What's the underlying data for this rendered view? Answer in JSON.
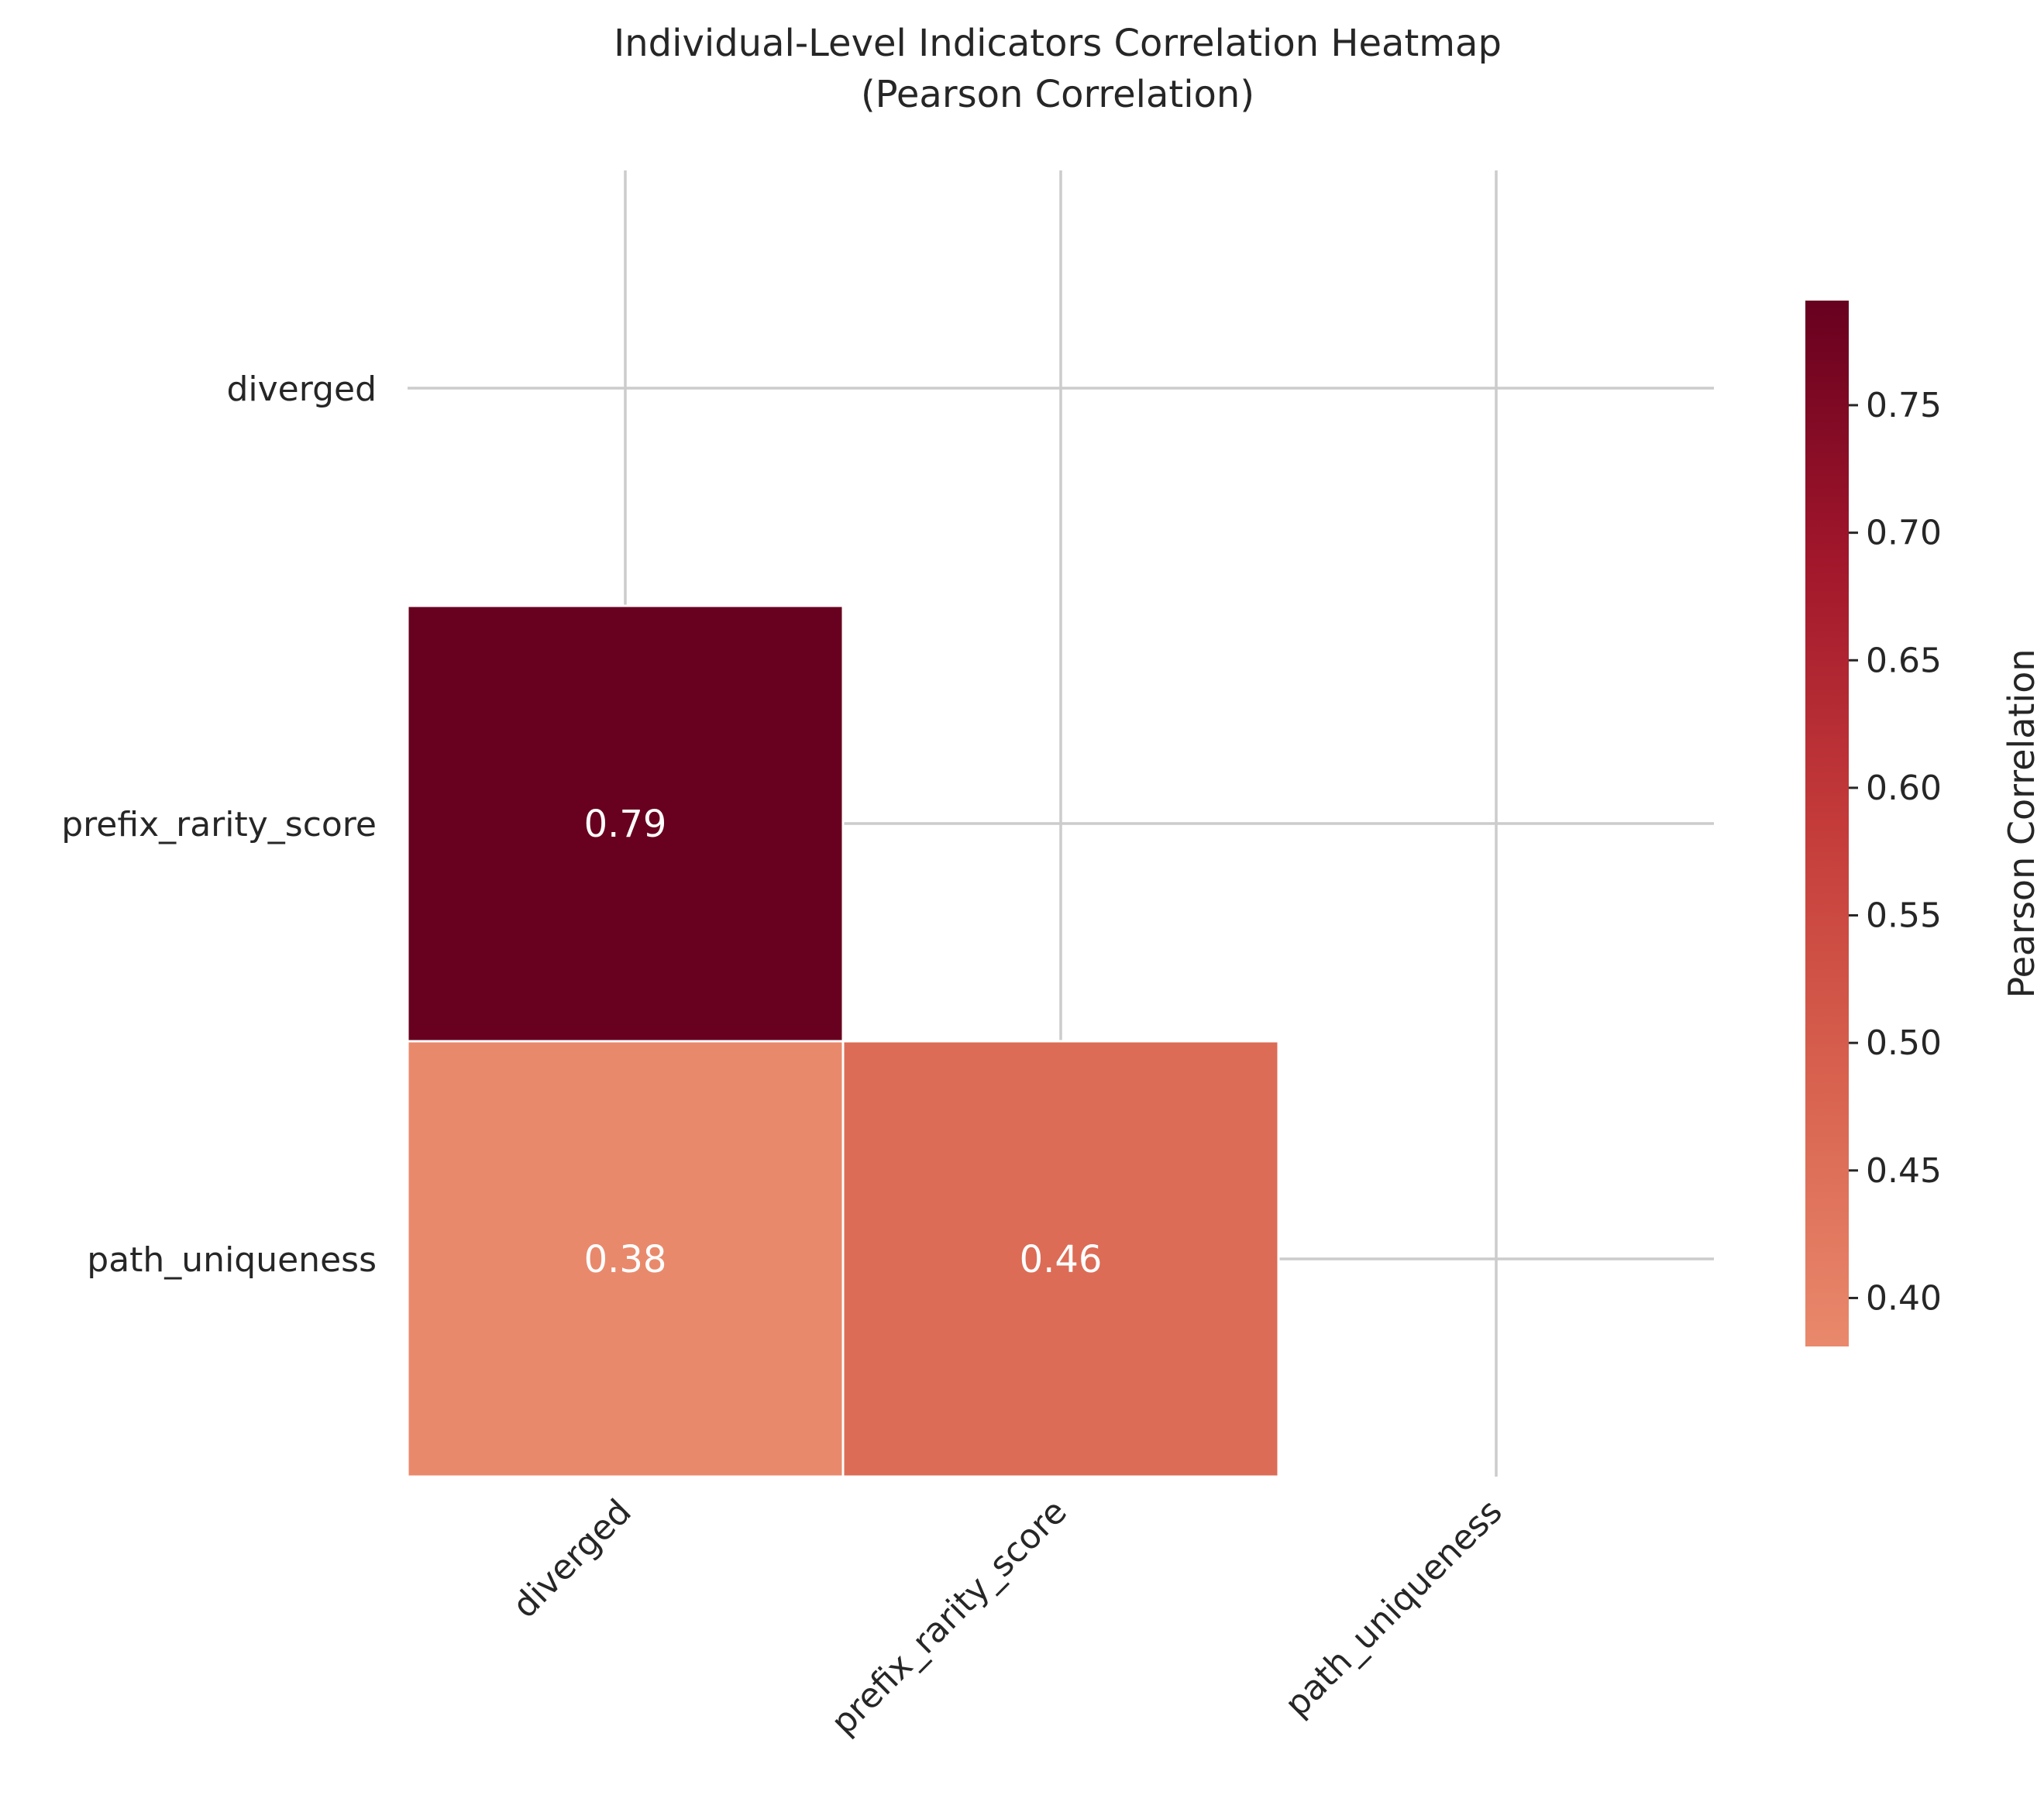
{
  "chart_data": {
    "type": "heatmap",
    "title": "Individual-Level Indicators Correlation Heatmap",
    "subtitle": "(Pearson Correlation)",
    "row_labels": [
      "diverged",
      "prefix_rarity_score",
      "path_uniqueness"
    ],
    "col_labels": [
      "diverged",
      "prefix_rarity_score",
      "path_uniqueness"
    ],
    "mask": "upper-triangle-including-diagonal",
    "cells": [
      {
        "row": "prefix_rarity_score",
        "col": "diverged",
        "value": 0.79,
        "label": "0.79"
      },
      {
        "row": "path_uniqueness",
        "col": "diverged",
        "value": 0.38,
        "label": "0.38"
      },
      {
        "row": "path_uniqueness",
        "col": "prefix_rarity_score",
        "value": 0.46,
        "label": "0.46"
      }
    ],
    "colorbar": {
      "label": "Pearson Correlation",
      "range": [
        0.381,
        0.791
      ],
      "ticks": [
        0.4,
        0.45,
        0.5,
        0.55,
        0.6,
        0.65,
        0.7,
        0.75
      ],
      "tick_labels": [
        "0.40",
        "0.45",
        "0.50",
        "0.55",
        "0.60",
        "0.65",
        "0.70",
        "0.75"
      ],
      "colormap": "RdBu_r (upper half)"
    },
    "grid": true,
    "colors": {
      "grid": "#cccccc",
      "cell_border": "#ffffff",
      "cell_text": "#ffffff"
    }
  }
}
